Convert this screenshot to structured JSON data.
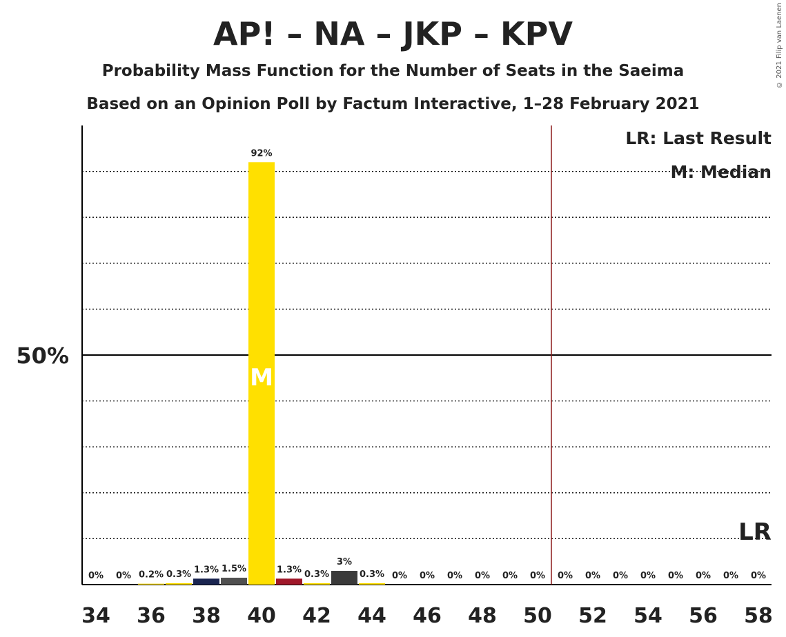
{
  "title": "AP! – NA – JKP – KPV",
  "subtitle1": "Probability Mass Function for the Number of Seats in the Saeima",
  "subtitle2": "Based on an Opinion Poll by Factum Interactive, 1–28 February 2021",
  "credit": "© 2021 Filip van Laenen",
  "legend": {
    "lr": "LR: Last Result",
    "m": "M: Median"
  },
  "median_marker": "M",
  "lr_marker": "LR",
  "colors": {
    "yellow": "#FFE000",
    "navy": "#1a2550",
    "gray": "#505050",
    "red": "#a0182a",
    "dark": "#3a3a3a",
    "lr_line": "#8B1A1A"
  },
  "chart_data": {
    "type": "bar",
    "xlabel": "",
    "ylabel": "",
    "x": [
      34,
      35,
      36,
      37,
      38,
      39,
      40,
      41,
      42,
      43,
      44,
      45,
      46,
      47,
      48,
      49,
      50,
      51,
      52,
      53,
      54,
      55,
      56,
      57,
      58
    ],
    "values": [
      0,
      0,
      0.2,
      0.3,
      1.3,
      1.5,
      92,
      1.3,
      0.3,
      3,
      0.3,
      0,
      0,
      0,
      0,
      0,
      0,
      0,
      0,
      0,
      0,
      0,
      0,
      0,
      0
    ],
    "labels": [
      "0%",
      "0%",
      "0.2%",
      "0.3%",
      "1.3%",
      "1.5%",
      "92%",
      "1.3%",
      "0.3%",
      "3%",
      "0.3%",
      "0%",
      "0%",
      "0%",
      "0%",
      "0%",
      "0%",
      "0%",
      "0%",
      "0%",
      "0%",
      "0%",
      "0%",
      "0%",
      "0%"
    ],
    "bar_colors": [
      "#FFE000",
      "#FFE000",
      "#FFE000",
      "#FFE000",
      "#1a2550",
      "#505050",
      "#FFE000",
      "#a0182a",
      "#FFE000",
      "#3a3a3a",
      "#FFE000",
      "#FFE000",
      "#FFE000",
      "#FFE000",
      "#FFE000",
      "#FFE000",
      "#FFE000",
      "#FFE000",
      "#FFE000",
      "#FFE000",
      "#FFE000",
      "#FFE000",
      "#FFE000",
      "#FFE000",
      "#FFE000"
    ],
    "x_ticks": [
      "34",
      "36",
      "38",
      "40",
      "42",
      "44",
      "46",
      "48",
      "50",
      "52",
      "54",
      "56",
      "58"
    ],
    "y_tick_labels": [
      "50%"
    ],
    "ylim": [
      0,
      100
    ],
    "median": 40,
    "last_result": 50.5,
    "grid": true
  }
}
